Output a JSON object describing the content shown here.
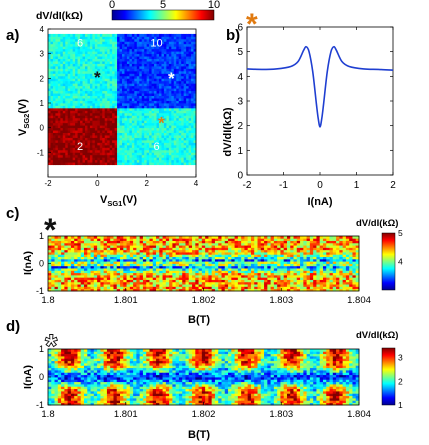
{
  "chart_data": [
    {
      "panel": "a)",
      "type": "heatmap",
      "xlabel_main": "V",
      "xlabel_sub": "SG1",
      "xlabel_unit": "(V)",
      "ylabel_main": "V",
      "ylabel_sub": "SG2",
      "ylabel_unit": "(V)",
      "xlim": [
        -2,
        4
      ],
      "ylim": [
        -2,
        4
      ],
      "xticks": [
        "-2",
        "0",
        "2",
        "4"
      ],
      "yticks": [
        "-1",
        "0",
        "1",
        "2",
        "3",
        "4"
      ],
      "colorbar": {
        "title": "dV/dI(kΩ)",
        "min": 0,
        "max": 10,
        "ticks": [
          "0",
          "5",
          "10"
        ]
      },
      "regions": [
        {
          "label": "2",
          "x": [
            -2,
            0.8
          ],
          "y": [
            -1.5,
            0.8
          ],
          "value": 9.8
        },
        {
          "label": "6",
          "x": [
            -2,
            0.8
          ],
          "y": [
            0.8,
            3.8
          ],
          "value": 4.0
        },
        {
          "label": "6",
          "x": [
            0.8,
            4
          ],
          "y": [
            -1.5,
            0.8
          ],
          "value": 4.0
        },
        {
          "label": "10",
          "x": [
            0.8,
            4
          ],
          "y": [
            0.8,
            3.8
          ],
          "value": 1.8
        }
      ],
      "region_labels": [
        {
          "text": "6",
          "x": -0.7,
          "y": 3.3
        },
        {
          "text": "10",
          "x": 2.4,
          "y": 3.3
        },
        {
          "text": "2",
          "x": -0.7,
          "y": -0.9
        },
        {
          "text": "6",
          "x": 2.4,
          "y": -0.9
        }
      ],
      "markers": [
        {
          "symbol": "*",
          "x": 0.0,
          "y": 2.1,
          "color": "#111111"
        },
        {
          "symbol": "*",
          "x": 3.0,
          "y": 2.05,
          "color": "#ffffff"
        },
        {
          "symbol": "*",
          "x": 2.6,
          "y": 0.25,
          "color": "#e07a10"
        }
      ]
    },
    {
      "panel": "b)",
      "type": "line",
      "marker_symbol": "*",
      "marker_color": "#e07a10",
      "xlabel": "I(nA)",
      "ylabel": "dV/dI(kΩ)",
      "xlim": [
        -2,
        2
      ],
      "ylim": [
        0,
        6
      ],
      "xticks": [
        "-2",
        "-1",
        "0",
        "1",
        "2"
      ],
      "yticks": [
        "0",
        "1",
        "2",
        "3",
        "4",
        "5",
        "6"
      ],
      "series": [
        {
          "color": "#1f3fd1",
          "x": [
            -2.0,
            -1.6,
            -1.2,
            -0.8,
            -0.6,
            -0.45,
            -0.38,
            -0.3,
            -0.2,
            -0.1,
            -0.05,
            0.0,
            0.05,
            0.1,
            0.2,
            0.3,
            0.38,
            0.45,
            0.6,
            0.8,
            1.2,
            1.6,
            2.0
          ],
          "y": [
            4.3,
            4.28,
            4.3,
            4.4,
            4.6,
            5.05,
            5.2,
            5.0,
            4.2,
            2.9,
            2.3,
            1.95,
            2.3,
            2.9,
            4.2,
            5.0,
            5.2,
            5.05,
            4.6,
            4.4,
            4.3,
            4.28,
            4.25
          ]
        }
      ]
    },
    {
      "panel": "c)",
      "type": "heatmap",
      "marker_symbol": "*",
      "marker_color": "#111111",
      "xlabel": "B(T)",
      "ylabel": "I(nA)",
      "xlim": [
        1.8,
        1.804
      ],
      "ylim": [
        -1,
        1
      ],
      "xticks": [
        "1.8",
        "1.801",
        "1.802",
        "1.803",
        "1.804"
      ],
      "yticks": [
        "-1",
        "0",
        "1"
      ],
      "colorbar": {
        "title": "dV/dI(kΩ)",
        "min": 3,
        "max": 5,
        "ticks": [
          "4",
          "5"
        ]
      },
      "pattern": {
        "outer_value": 4.4,
        "center_value": 3.3,
        "center_band_halfwidth_nA": 0.25,
        "oscillating": false
      }
    },
    {
      "panel": "d)",
      "type": "heatmap",
      "marker_symbol": "*",
      "marker_color": "#ffffff",
      "xlabel": "B(T)",
      "ylabel": "I(nA)",
      "xlim": [
        1.8,
        1.804
      ],
      "ylim": [
        -1,
        1
      ],
      "xticks": [
        "1.8",
        "1.801",
        "1.802",
        "1.803",
        "1.804"
      ],
      "yticks": [
        "-1",
        "0",
        "1"
      ],
      "colorbar": {
        "title": "dV/dI(kΩ)",
        "min": 1,
        "max": 3.4,
        "ticks": [
          "1",
          "2",
          "3"
        ]
      },
      "pattern": {
        "outer_value": 2.6,
        "center_value": 1.3,
        "center_band_halfwidth_nA": 0.3,
        "oscillating": true,
        "period_T": 0.00057
      }
    }
  ]
}
